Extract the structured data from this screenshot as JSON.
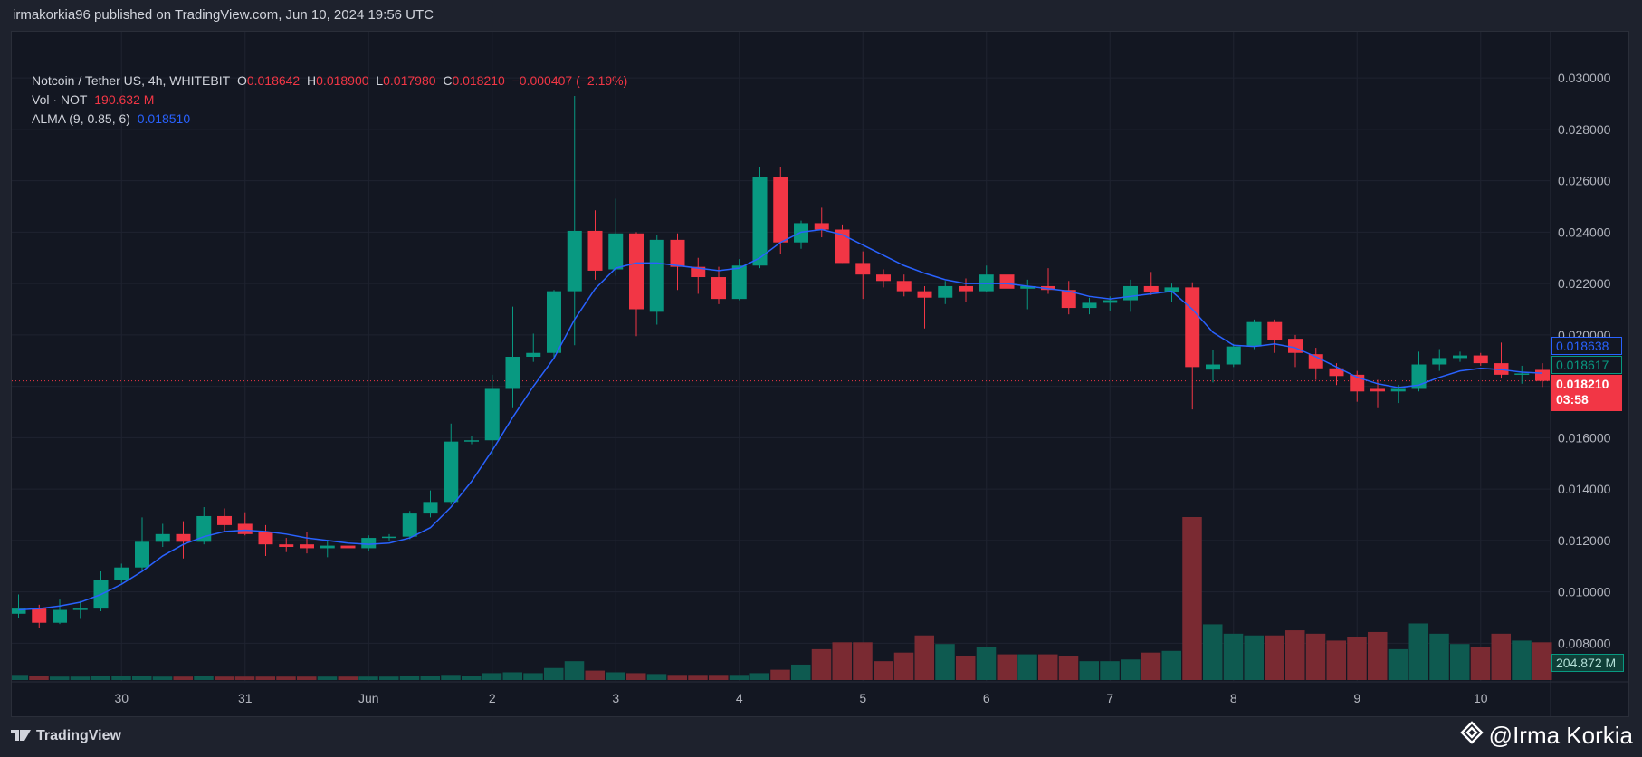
{
  "header": {
    "published": "irmakorkia96 published on TradingView.com, Jun 10, 2024 19:56 UTC"
  },
  "legend": {
    "symbol": "Notcoin / Tether US, 4h, WHITEBIT",
    "o_label": "O",
    "o_value": "0.018642",
    "h_label": "H",
    "h_value": "0.018900",
    "l_label": "L",
    "l_value": "0.017980",
    "c_label": "C",
    "c_value": "0.018210",
    "change": "−0.000407 (−2.19%)",
    "vol_label": "Vol · NOT",
    "vol_value": "190.632 M",
    "alma_label": "ALMA (9, 0.85, 6)",
    "alma_value": "0.018510"
  },
  "price_tags": {
    "alma": "0.018638",
    "other": "0.018617",
    "last_price": "0.018210",
    "countdown": "03:58",
    "volume": "204.872 M"
  },
  "colors": {
    "up": "#089981",
    "down": "#f23645",
    "alma": "#2962ff",
    "background": "#131722",
    "grid": "#1f2330"
  },
  "footer": {
    "brand": "TradingView",
    "watermark": "@Irma Korkia",
    "brand_icon": "tradingview-logo-icon",
    "watermark_icon": "diamond-logo-icon"
  },
  "chart_data": {
    "type": "candlestick",
    "title": "Notcoin / Tether US, 4h, WHITEBIT",
    "ylim": [
      0.0065,
      0.0318
    ],
    "y_ticks": [
      "0.030000",
      "0.028000",
      "0.026000",
      "0.024000",
      "0.022000",
      "0.020000",
      "0.018000",
      "0.016000",
      "0.014000",
      "0.012000",
      "0.010000",
      "0.008000"
    ],
    "x_ticks": [
      {
        "label": "30",
        "index": 5
      },
      {
        "label": "31",
        "index": 11
      },
      {
        "label": "Jun",
        "index": 17
      },
      {
        "label": "2",
        "index": 23
      },
      {
        "label": "3",
        "index": 29
      },
      {
        "label": "4",
        "index": 35
      },
      {
        "label": "5",
        "index": 41
      },
      {
        "label": "6",
        "index": 47
      },
      {
        "label": "7",
        "index": 53
      },
      {
        "label": "8",
        "index": 59
      },
      {
        "label": "9",
        "index": 65
      },
      {
        "label": "10",
        "index": 71
      }
    ],
    "candles": [
      {
        "o": 0.00915,
        "h": 0.0099,
        "l": 0.009,
        "c": 0.00935
      },
      {
        "o": 0.00935,
        "h": 0.0095,
        "l": 0.0086,
        "c": 0.0088
      },
      {
        "o": 0.0088,
        "h": 0.0097,
        "l": 0.00875,
        "c": 0.0093
      },
      {
        "o": 0.00935,
        "h": 0.00965,
        "l": 0.00895,
        "c": 0.00935
      },
      {
        "o": 0.00935,
        "h": 0.0108,
        "l": 0.00925,
        "c": 0.01045
      },
      {
        "o": 0.01045,
        "h": 0.0111,
        "l": 0.01035,
        "c": 0.01095
      },
      {
        "o": 0.01095,
        "h": 0.0129,
        "l": 0.01085,
        "c": 0.01195
      },
      {
        "o": 0.01195,
        "h": 0.01265,
        "l": 0.01175,
        "c": 0.01225
      },
      {
        "o": 0.01225,
        "h": 0.01275,
        "l": 0.0113,
        "c": 0.01195
      },
      {
        "o": 0.01195,
        "h": 0.0133,
        "l": 0.01185,
        "c": 0.01295
      },
      {
        "o": 0.01295,
        "h": 0.01325,
        "l": 0.01235,
        "c": 0.0126
      },
      {
        "o": 0.01265,
        "h": 0.0131,
        "l": 0.0122,
        "c": 0.01225
      },
      {
        "o": 0.01235,
        "h": 0.0126,
        "l": 0.0114,
        "c": 0.01185
      },
      {
        "o": 0.01185,
        "h": 0.0121,
        "l": 0.01155,
        "c": 0.01175
      },
      {
        "o": 0.01185,
        "h": 0.01235,
        "l": 0.0115,
        "c": 0.0117
      },
      {
        "o": 0.0117,
        "h": 0.012,
        "l": 0.01135,
        "c": 0.0118
      },
      {
        "o": 0.0118,
        "h": 0.012,
        "l": 0.0116,
        "c": 0.0117
      },
      {
        "o": 0.0117,
        "h": 0.0122,
        "l": 0.0116,
        "c": 0.0121
      },
      {
        "o": 0.0121,
        "h": 0.01225,
        "l": 0.012,
        "c": 0.01215
      },
      {
        "o": 0.01215,
        "h": 0.01315,
        "l": 0.01205,
        "c": 0.01305
      },
      {
        "o": 0.01305,
        "h": 0.01395,
        "l": 0.0129,
        "c": 0.0135
      },
      {
        "o": 0.0135,
        "h": 0.01655,
        "l": 0.0134,
        "c": 0.01585
      },
      {
        "o": 0.01585,
        "h": 0.01605,
        "l": 0.01575,
        "c": 0.0159
      },
      {
        "o": 0.0159,
        "h": 0.01845,
        "l": 0.0153,
        "c": 0.0179
      },
      {
        "o": 0.0179,
        "h": 0.0211,
        "l": 0.01715,
        "c": 0.01915
      },
      {
        "o": 0.01915,
        "h": 0.02005,
        "l": 0.01895,
        "c": 0.0193
      },
      {
        "o": 0.0193,
        "h": 0.02175,
        "l": 0.01905,
        "c": 0.0217
      },
      {
        "o": 0.0217,
        "h": 0.0293,
        "l": 0.0196,
        "c": 0.02405
      },
      {
        "o": 0.02405,
        "h": 0.02485,
        "l": 0.02215,
        "c": 0.0225
      },
      {
        "o": 0.02255,
        "h": 0.0253,
        "l": 0.0223,
        "c": 0.02395
      },
      {
        "o": 0.02395,
        "h": 0.024,
        "l": 0.01995,
        "c": 0.021
      },
      {
        "o": 0.0209,
        "h": 0.0239,
        "l": 0.0204,
        "c": 0.0237
      },
      {
        "o": 0.0237,
        "h": 0.02395,
        "l": 0.02175,
        "c": 0.02265
      },
      {
        "o": 0.02265,
        "h": 0.023,
        "l": 0.0216,
        "c": 0.02225
      },
      {
        "o": 0.02225,
        "h": 0.02265,
        "l": 0.0212,
        "c": 0.0214
      },
      {
        "o": 0.0214,
        "h": 0.02295,
        "l": 0.02135,
        "c": 0.0227
      },
      {
        "o": 0.0227,
        "h": 0.02655,
        "l": 0.0226,
        "c": 0.02615
      },
      {
        "o": 0.02615,
        "h": 0.02655,
        "l": 0.02315,
        "c": 0.0236
      },
      {
        "o": 0.0236,
        "h": 0.02445,
        "l": 0.02335,
        "c": 0.02435
      },
      {
        "o": 0.02435,
        "h": 0.02495,
        "l": 0.0238,
        "c": 0.0241
      },
      {
        "o": 0.0241,
        "h": 0.0243,
        "l": 0.0228,
        "c": 0.0228
      },
      {
        "o": 0.0228,
        "h": 0.02325,
        "l": 0.0214,
        "c": 0.02235
      },
      {
        "o": 0.02235,
        "h": 0.02255,
        "l": 0.02185,
        "c": 0.0221
      },
      {
        "o": 0.0221,
        "h": 0.02235,
        "l": 0.0215,
        "c": 0.0217
      },
      {
        "o": 0.0217,
        "h": 0.0219,
        "l": 0.02025,
        "c": 0.02145
      },
      {
        "o": 0.02145,
        "h": 0.0221,
        "l": 0.0212,
        "c": 0.0219
      },
      {
        "o": 0.0219,
        "h": 0.0222,
        "l": 0.0213,
        "c": 0.0217
      },
      {
        "o": 0.0217,
        "h": 0.0227,
        "l": 0.02165,
        "c": 0.02235
      },
      {
        "o": 0.02235,
        "h": 0.02295,
        "l": 0.02145,
        "c": 0.0218
      },
      {
        "o": 0.0218,
        "h": 0.02215,
        "l": 0.021,
        "c": 0.0219
      },
      {
        "o": 0.0219,
        "h": 0.0226,
        "l": 0.0216,
        "c": 0.02175
      },
      {
        "o": 0.02175,
        "h": 0.0221,
        "l": 0.0208,
        "c": 0.02105
      },
      {
        "o": 0.02105,
        "h": 0.02145,
        "l": 0.0208,
        "c": 0.02125
      },
      {
        "o": 0.02125,
        "h": 0.0215,
        "l": 0.02095,
        "c": 0.02135
      },
      {
        "o": 0.02135,
        "h": 0.02215,
        "l": 0.0209,
        "c": 0.0219
      },
      {
        "o": 0.0219,
        "h": 0.02245,
        "l": 0.02155,
        "c": 0.02165
      },
      {
        "o": 0.02165,
        "h": 0.022,
        "l": 0.0213,
        "c": 0.02185
      },
      {
        "o": 0.02185,
        "h": 0.02205,
        "l": 0.0171,
        "c": 0.01875
      },
      {
        "o": 0.01865,
        "h": 0.0194,
        "l": 0.01815,
        "c": 0.01885
      },
      {
        "o": 0.01885,
        "h": 0.01965,
        "l": 0.01875,
        "c": 0.01955
      },
      {
        "o": 0.01955,
        "h": 0.0206,
        "l": 0.01945,
        "c": 0.0205
      },
      {
        "o": 0.0205,
        "h": 0.0206,
        "l": 0.0193,
        "c": 0.0198
      },
      {
        "o": 0.01985,
        "h": 0.02,
        "l": 0.01875,
        "c": 0.0193
      },
      {
        "o": 0.01925,
        "h": 0.0195,
        "l": 0.01825,
        "c": 0.0187
      },
      {
        "o": 0.0187,
        "h": 0.0189,
        "l": 0.01805,
        "c": 0.0184
      },
      {
        "o": 0.01845,
        "h": 0.0186,
        "l": 0.0174,
        "c": 0.0178
      },
      {
        "o": 0.0179,
        "h": 0.01825,
        "l": 0.01715,
        "c": 0.0178
      },
      {
        "o": 0.0178,
        "h": 0.01805,
        "l": 0.01735,
        "c": 0.0179
      },
      {
        "o": 0.0179,
        "h": 0.01935,
        "l": 0.0178,
        "c": 0.01885
      },
      {
        "o": 0.01885,
        "h": 0.01945,
        "l": 0.0186,
        "c": 0.0191
      },
      {
        "o": 0.0191,
        "h": 0.01935,
        "l": 0.01895,
        "c": 0.0192
      },
      {
        "o": 0.0192,
        "h": 0.0193,
        "l": 0.0188,
        "c": 0.0189
      },
      {
        "o": 0.0189,
        "h": 0.0197,
        "l": 0.0183,
        "c": 0.01845
      },
      {
        "o": 0.01845,
        "h": 0.0188,
        "l": 0.0181,
        "c": 0.0185
      },
      {
        "o": 0.01864,
        "h": 0.0189,
        "l": 0.01798,
        "c": 0.01821
      }
    ],
    "volume_scale_max": 190,
    "volume": [
      6,
      5,
      4,
      4,
      5,
      5,
      5,
      4,
      4,
      5,
      4,
      4,
      4,
      4,
      4,
      4,
      4,
      4,
      4,
      5,
      5,
      6,
      5,
      8,
      9,
      8,
      14,
      22,
      11,
      9,
      8,
      7,
      6,
      6,
      6,
      6,
      8,
      12,
      18,
      36,
      44,
      44,
      22,
      32,
      52,
      42,
      28,
      38,
      30,
      30,
      30,
      28,
      22,
      22,
      24,
      32,
      34,
      190,
      65,
      54,
      52,
      52,
      58,
      54,
      46,
      50,
      56,
      36,
      66,
      54,
      42,
      38,
      54,
      46,
      44
    ],
    "alma": [
      0.0093,
      0.00935,
      0.00945,
      0.0096,
      0.0099,
      0.0103,
      0.0108,
      0.0114,
      0.01185,
      0.01215,
      0.01235,
      0.0124,
      0.01235,
      0.01225,
      0.0121,
      0.012,
      0.0119,
      0.01185,
      0.0119,
      0.0121,
      0.0125,
      0.0133,
      0.0143,
      0.0155,
      0.0168,
      0.018,
      0.0191,
      0.0206,
      0.0218,
      0.0226,
      0.0228,
      0.0228,
      0.0227,
      0.0226,
      0.0225,
      0.0226,
      0.023,
      0.0236,
      0.024,
      0.0241,
      0.0239,
      0.0235,
      0.0231,
      0.0227,
      0.0224,
      0.02215,
      0.022,
      0.022,
      0.022,
      0.0219,
      0.0218,
      0.0217,
      0.0215,
      0.0214,
      0.0215,
      0.0216,
      0.0217,
      0.021,
      0.0201,
      0.0196,
      0.01955,
      0.01965,
      0.0195,
      0.01915,
      0.01875,
      0.01835,
      0.0181,
      0.01795,
      0.01805,
      0.01835,
      0.0186,
      0.0187,
      0.01865,
      0.01855,
      0.01851
    ]
  }
}
